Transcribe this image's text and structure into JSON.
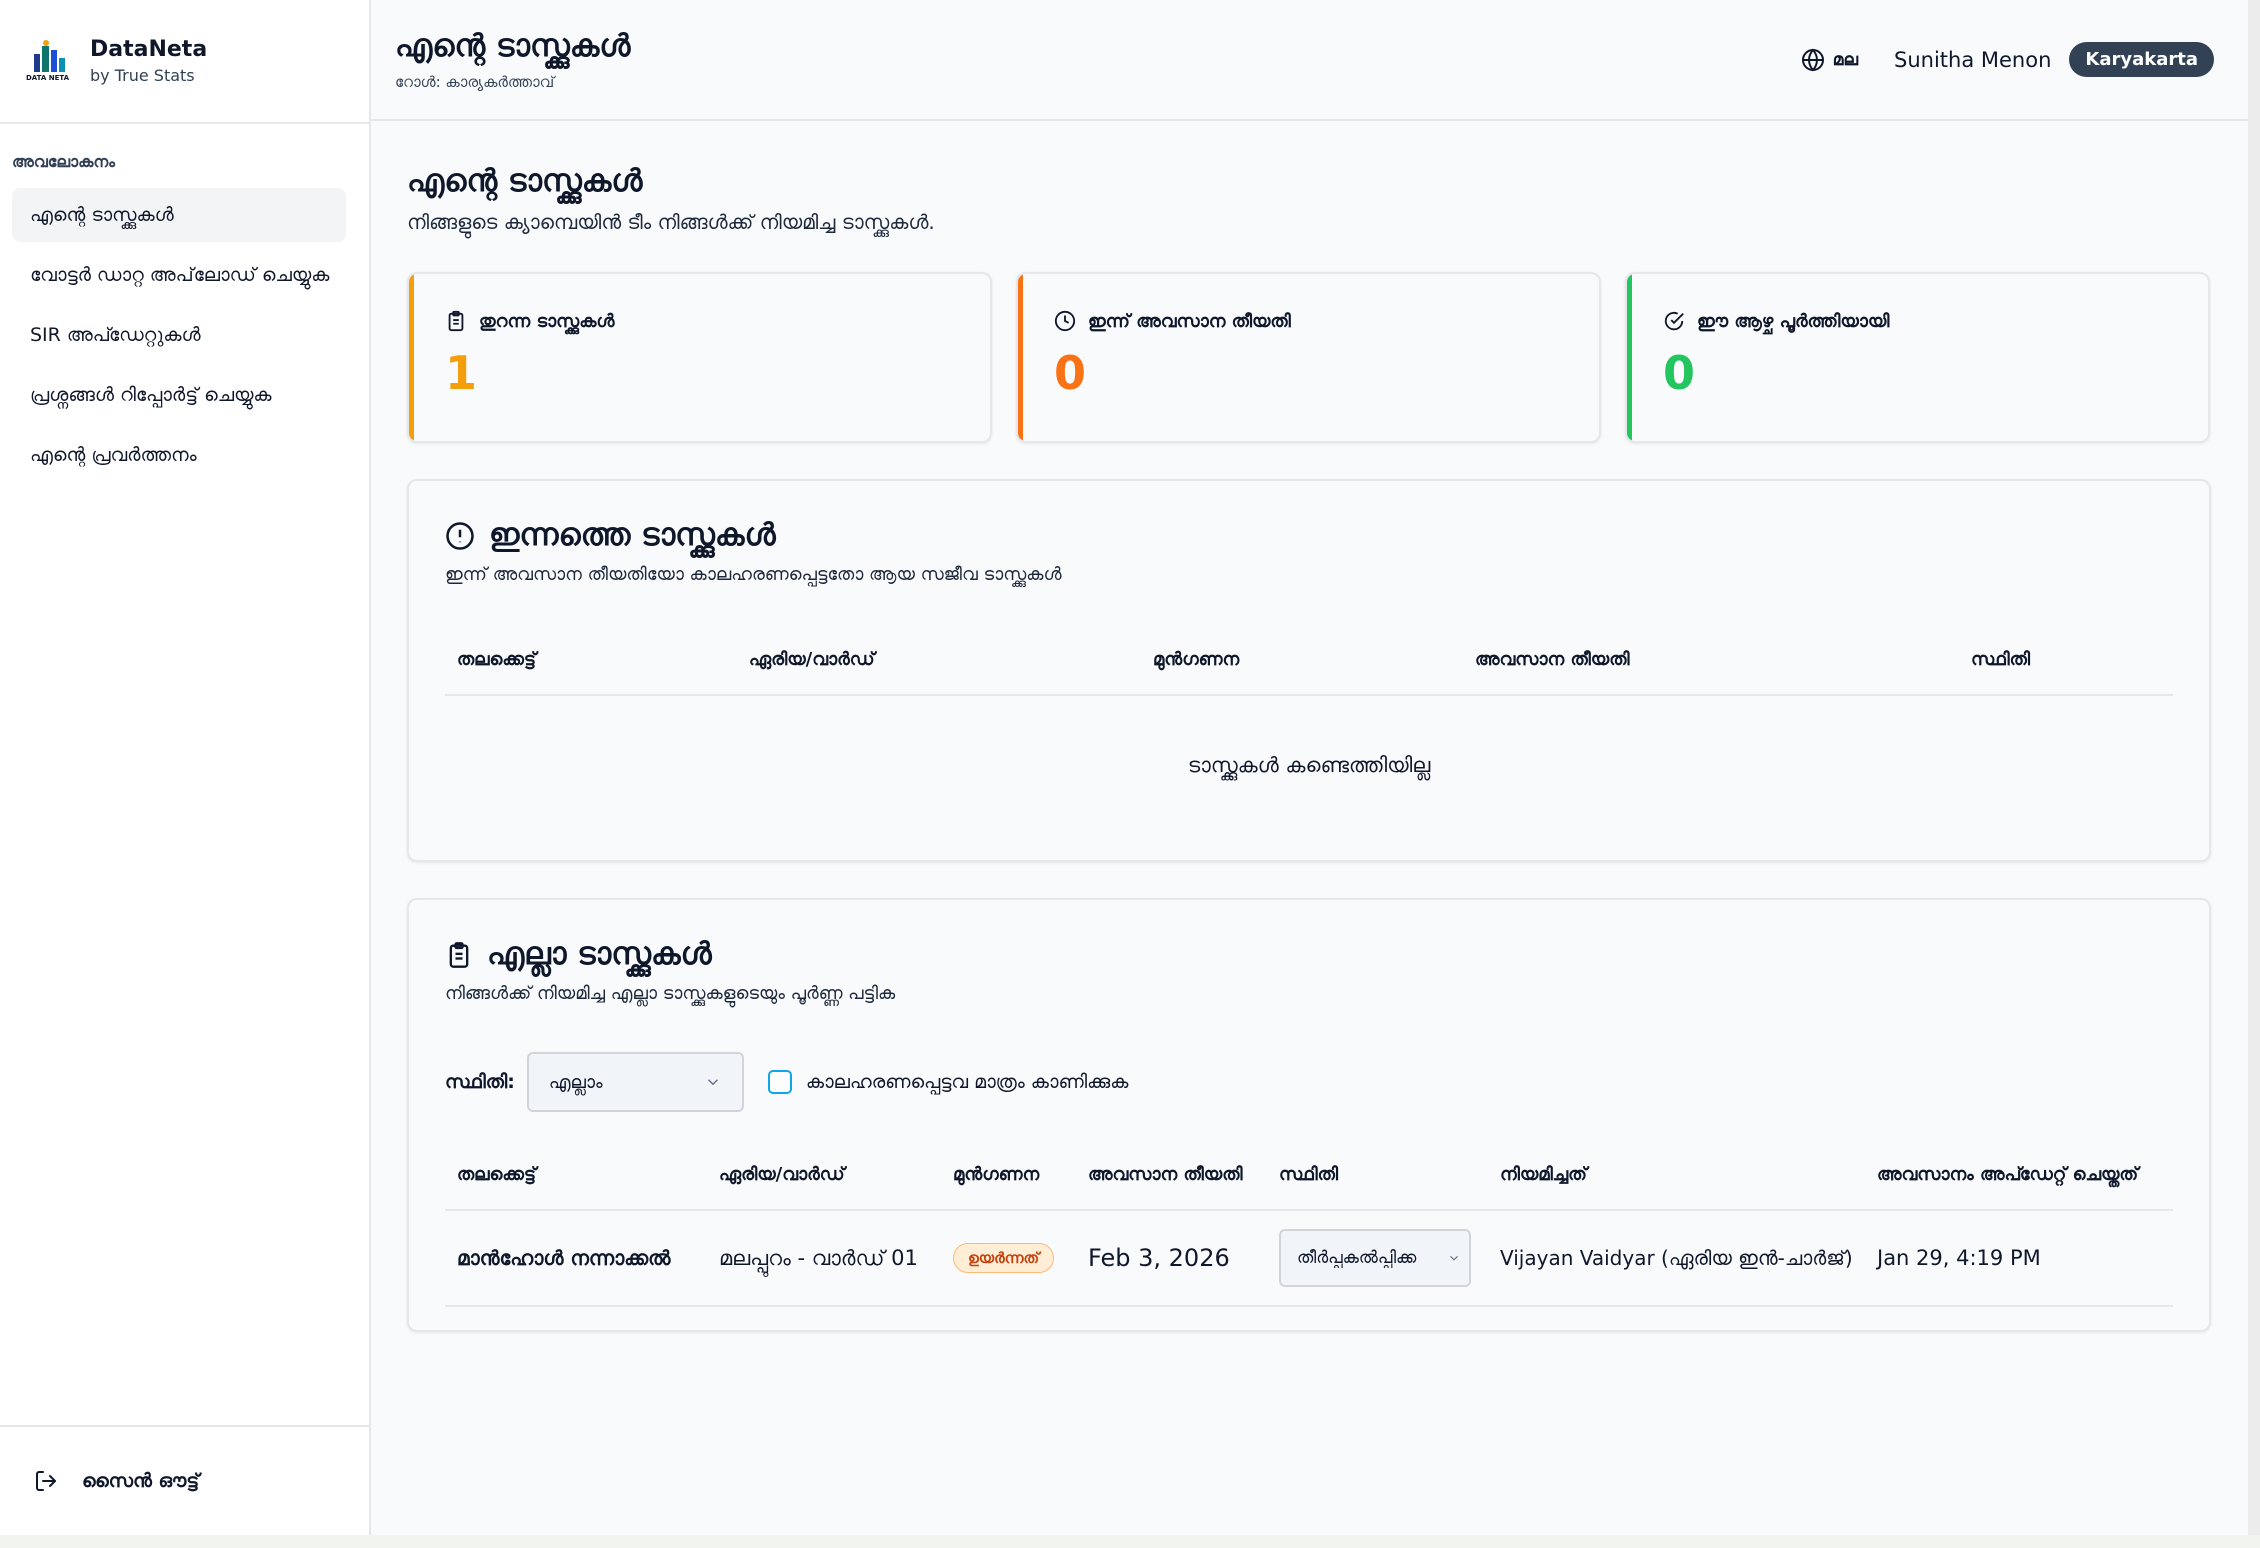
{
  "brand": {
    "name": "DataNeta",
    "sub": "by True Stats",
    "logo_text": "DATA NETA"
  },
  "sidebar": {
    "heading": "അവലോകനം",
    "items": [
      {
        "label": "എന്റെ ടാസ്ക്കുകൾ",
        "active": true
      },
      {
        "label": "വോട്ടർ ഡാറ്റ അപ്‌ലോഡ് ചെയ്യുക"
      },
      {
        "label": "SIR അപ്ഡേറ്റുകൾ"
      },
      {
        "label": "പ്രശ്നങ്ങൾ റിപ്പോർട്ട് ചെയ്യുക"
      },
      {
        "label": "എന്റെ പ്രവർത്തനം"
      }
    ],
    "signout": "സൈൻ ഔട്ട്"
  },
  "header": {
    "title": "എന്റെ ടാസ്ക്കുകൾ",
    "role": "റോൾ: കാര്യകർത്താവ്",
    "language": "മല",
    "user_name": "Sunitha Menon",
    "role_badge": "Karyakarta"
  },
  "page": {
    "title": "എന്റെ ടാസ്ക്കുകൾ",
    "subtitle": "നിങ്ങളുടെ ക്യാമ്പെയിൻ ടീം നിങ്ങൾക്ക് നിയമിച്ച ടാസ്ക്കുകൾ."
  },
  "stats": [
    {
      "label": "തുറന്ന ടാസ്ക്കുകൾ",
      "value": "1",
      "color": "#f59e0b",
      "icon": "clipboard-icon"
    },
    {
      "label": "ഇന്ന് അവസാന തീയതി",
      "value": "0",
      "color": "#f97316",
      "icon": "clock-icon"
    },
    {
      "label": "ഈ ആഴ്ച പൂർത്തിയായി",
      "value": "0",
      "color": "#22c55e",
      "icon": "check-circle-icon"
    }
  ],
  "today": {
    "title": "ഇന്നത്തെ ടാസ്ക്കുകൾ",
    "subtitle": "ഇന്ന് അവസാന തീയതിയോ കാലഹരണപ്പെട്ടതോ ആയ സജീവ ടാസ്ക്കുകൾ",
    "columns": [
      "തലക്കെട്ട്",
      "ഏരിയ/വാർഡ്",
      "മുൻഗണന",
      "അവസാന തീയതി",
      "സ്ഥിതി"
    ],
    "empty": "ടാസ്ക്കുകൾ കണ്ടെത്തിയില്ല"
  },
  "all": {
    "title": "എല്ലാ ടാസ്ക്കുകൾ",
    "subtitle": "നിങ്ങൾക്ക് നിയമിച്ച എല്ലാ ടാസ്ക്കുകളുടെയും പൂർണ്ണ പട്ടിക",
    "filter_label": "സ്ഥിതി:",
    "filter_value": "എല്ലാം",
    "overdue_only": "കാലഹരണപ്പെട്ടവ മാത്രം കാണിക്കുക",
    "columns": [
      "തലക്കെട്ട്",
      "ഏരിയ/വാർഡ്",
      "മുൻഗണന",
      "അവസാന തീയതി",
      "സ്ഥിതി",
      "നിയമിച്ചത്",
      "അവസാനം അപ്ഡേറ്റ് ചെയ്തത്"
    ],
    "rows": [
      {
        "title": "മാൻഹോൾ നന്നാക്കൽ",
        "area": "മലപ്പുറം - വാർഡ് 01",
        "priority": "ഉയർന്നത്",
        "due": "Feb 3, 2026",
        "status": "തീർപ്പുകൽപ്പിക്ക",
        "assigned_by": "Vijayan Vaidyar (ഏരിയ ഇൻ-ചാർജ്)",
        "updated": "Jan 29, 4:19 PM"
      }
    ]
  }
}
